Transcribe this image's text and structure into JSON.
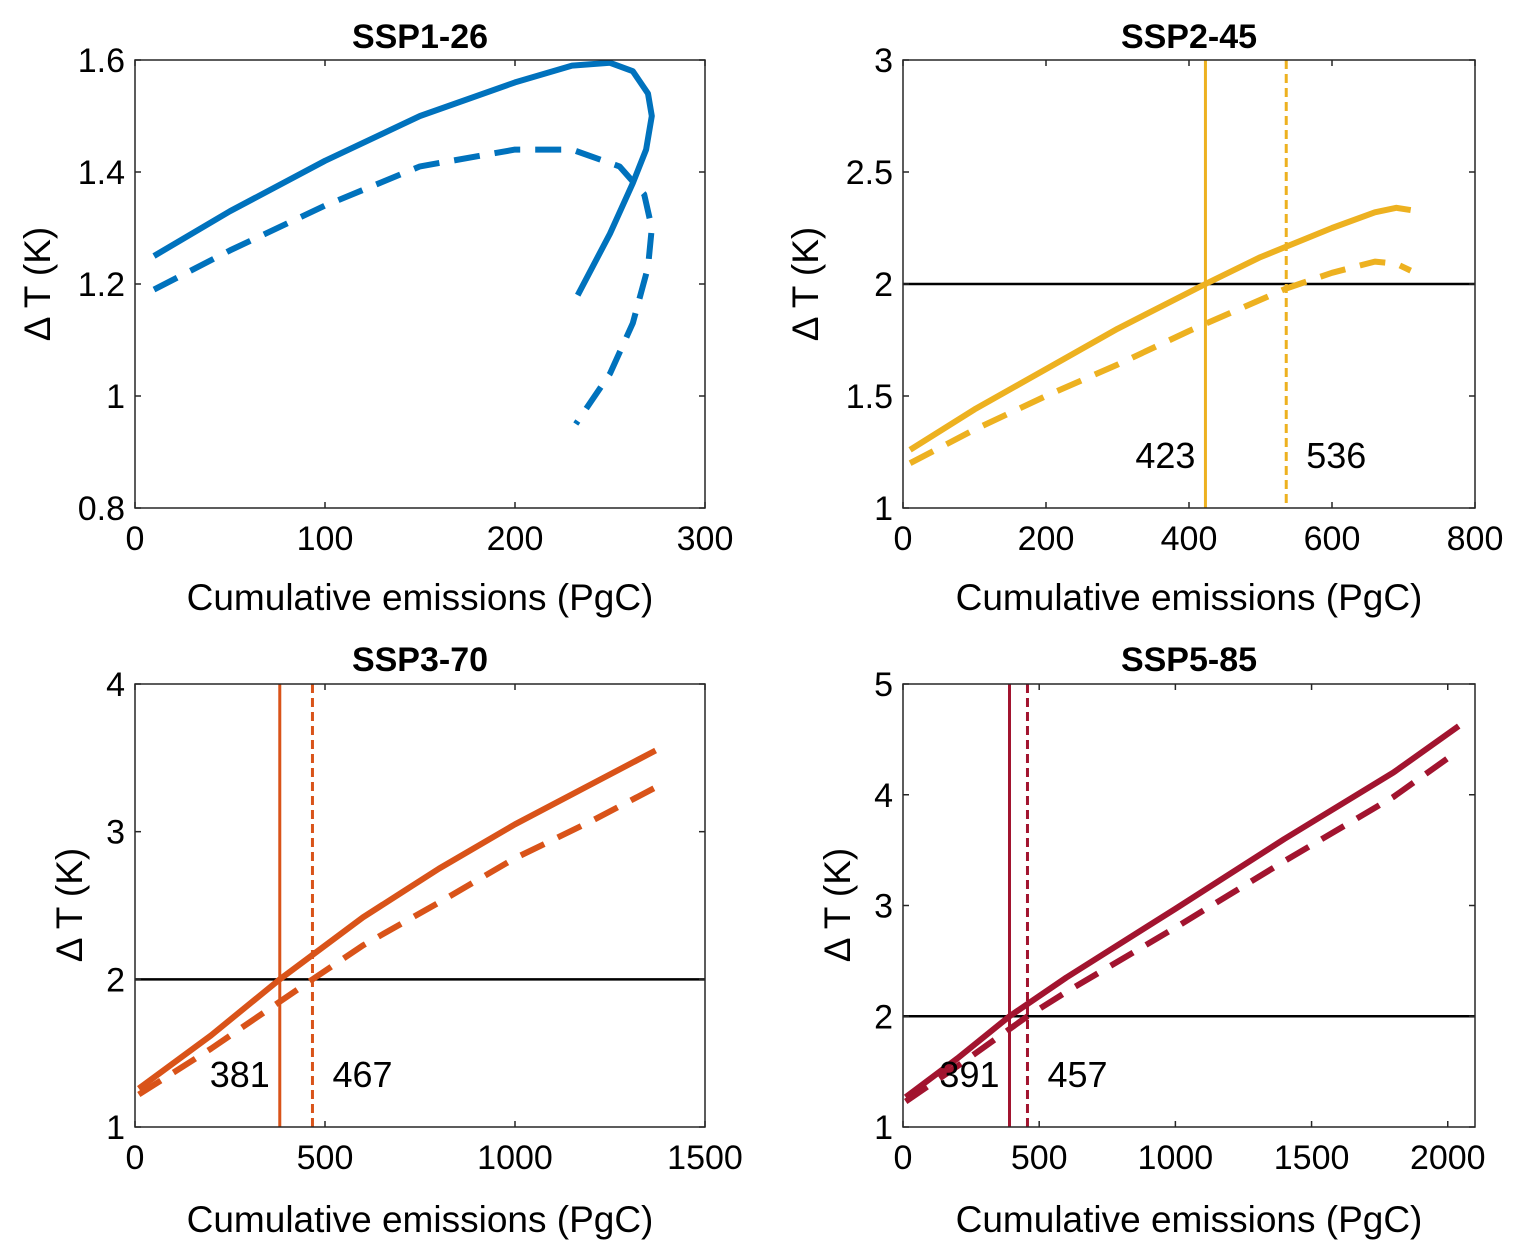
{
  "chart_data": [
    {
      "type": "line",
      "title": "SSP1-26",
      "xlabel": "Cumulative emissions (PgC)",
      "ylabel": "Δ T (K)",
      "xlim": [
        0,
        300
      ],
      "ylim": [
        0.8,
        1.6
      ],
      "xticks": [
        0,
        100,
        200,
        300
      ],
      "yticks": [
        0.8,
        1,
        1.2,
        1.4,
        1.6
      ],
      "color": "#0072bd",
      "threshold": null,
      "series": [
        {
          "name": "solid",
          "style": "solid",
          "x": [
            10,
            50,
            100,
            150,
            200,
            230,
            250,
            262,
            270,
            272,
            269,
            262,
            250,
            233
          ],
          "y": [
            1.25,
            1.33,
            1.42,
            1.5,
            1.56,
            1.59,
            1.595,
            1.58,
            1.54,
            1.5,
            1.44,
            1.38,
            1.29,
            1.18
          ]
        },
        {
          "name": "dashed",
          "style": "dashed",
          "x": [
            10,
            50,
            100,
            150,
            200,
            230,
            255,
            268,
            272,
            270,
            262,
            250,
            232
          ],
          "y": [
            1.19,
            1.26,
            1.34,
            1.41,
            1.44,
            1.44,
            1.41,
            1.36,
            1.3,
            1.23,
            1.13,
            1.04,
            0.95
          ]
        }
      ],
      "vlines": []
    },
    {
      "type": "line",
      "title": "SSP2-45",
      "xlabel": "Cumulative emissions (PgC)",
      "ylabel": "Δ T (K)",
      "xlim": [
        0,
        800
      ],
      "ylim": [
        1,
        3
      ],
      "xticks": [
        0,
        200,
        400,
        600,
        800
      ],
      "yticks": [
        1,
        1.5,
        2,
        2.5,
        3
      ],
      "color": "#edb120",
      "threshold": 2,
      "series": [
        {
          "name": "solid",
          "style": "solid",
          "x": [
            10,
            100,
            200,
            300,
            423,
            500,
            600,
            660,
            690,
            710
          ],
          "y": [
            1.26,
            1.44,
            1.62,
            1.8,
            2.0,
            2.12,
            2.25,
            2.32,
            2.34,
            2.33
          ]
        },
        {
          "name": "dashed",
          "style": "dashed",
          "x": [
            10,
            100,
            200,
            300,
            400,
            536,
            600,
            660,
            690,
            710
          ],
          "y": [
            1.2,
            1.35,
            1.5,
            1.64,
            1.79,
            1.98,
            2.05,
            2.1,
            2.09,
            2.06
          ]
        }
      ],
      "vlines": [
        {
          "x": 423,
          "style": "solid",
          "label": "423",
          "label_side": "left"
        },
        {
          "x": 536,
          "style": "dashed",
          "label": "536",
          "label_side": "right"
        }
      ]
    },
    {
      "type": "line",
      "title": "SSP3-70",
      "xlabel": "Cumulative emissions (PgC)",
      "ylabel": "Δ T (K)",
      "xlim": [
        0,
        1500
      ],
      "ylim": [
        1,
        4
      ],
      "xticks": [
        0,
        500,
        1000,
        1500
      ],
      "yticks": [
        1,
        2,
        3,
        4
      ],
      "color": "#d95319",
      "threshold": 2,
      "series": [
        {
          "name": "solid",
          "style": "solid",
          "x": [
            10,
            200,
            381,
            600,
            800,
            1000,
            1200,
            1370
          ],
          "y": [
            1.26,
            1.62,
            2.0,
            2.42,
            2.75,
            3.05,
            3.32,
            3.55
          ]
        },
        {
          "name": "dashed",
          "style": "dashed",
          "x": [
            10,
            200,
            467,
            600,
            800,
            1000,
            1200,
            1370
          ],
          "y": [
            1.22,
            1.53,
            2.0,
            2.23,
            2.52,
            2.82,
            3.07,
            3.3
          ]
        }
      ],
      "vlines": [
        {
          "x": 381,
          "style": "solid",
          "label": "381",
          "label_side": "left"
        },
        {
          "x": 467,
          "style": "dashed",
          "label": "467",
          "label_side": "right"
        }
      ]
    },
    {
      "type": "line",
      "title": "SSP5-85",
      "xlabel": "Cumulative emissions (PgC)",
      "ylabel": "Δ T (K)",
      "xlim": [
        0,
        2100
      ],
      "ylim": [
        1,
        5
      ],
      "xticks": [
        0,
        500,
        1000,
        1500,
        2000
      ],
      "xticklabels": [
        "0",
        "500",
        "1000",
        "1500",
        "2000"
      ],
      "yticks": [
        1,
        2,
        3,
        4,
        5
      ],
      "color": "#a2142f",
      "threshold": 2,
      "series": [
        {
          "name": "solid",
          "style": "solid",
          "x": [
            10,
            200,
            391,
            600,
            1000,
            1400,
            1800,
            2040
          ],
          "y": [
            1.27,
            1.62,
            2.0,
            2.35,
            2.97,
            3.6,
            4.2,
            4.62
          ]
        },
        {
          "name": "dashed",
          "style": "dashed",
          "x": [
            10,
            200,
            457,
            600,
            1000,
            1400,
            1800,
            2040
          ],
          "y": [
            1.23,
            1.55,
            2.0,
            2.22,
            2.8,
            3.4,
            3.98,
            4.4
          ]
        }
      ],
      "vlines": [
        {
          "x": 391,
          "style": "solid",
          "label": "391",
          "label_side": "left"
        },
        {
          "x": 457,
          "style": "dashed",
          "label": "457",
          "label_side": "right"
        }
      ]
    }
  ]
}
